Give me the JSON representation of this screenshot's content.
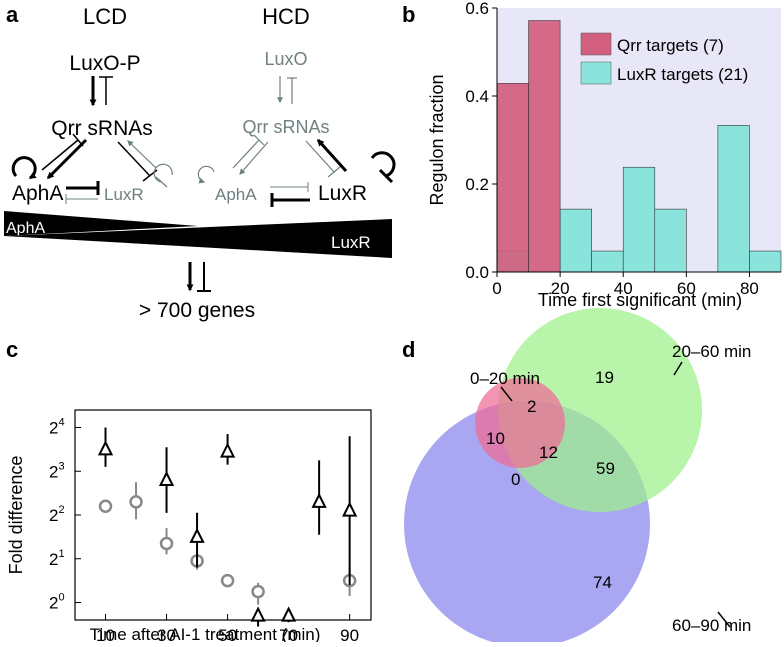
{
  "panels": {
    "a": {
      "letter": "a",
      "lcd": {
        "title": "LCD",
        "luxo_p": "LuxO-P",
        "qrr": "Qrr sRNAs",
        "apha": "AphA",
        "luxr": "LuxR"
      },
      "hcd": {
        "title": "HCD",
        "luxo": "LuxO",
        "qrr": "Qrr sRNAs",
        "apha": "AphA",
        "luxr": "LuxR"
      },
      "wedges": {
        "apha_label": "AphA",
        "luxr_label": "LuxR"
      },
      "target": "> 700 genes"
    },
    "b": {
      "letter": "b"
    },
    "c": {
      "letter": "c"
    },
    "d": {
      "letter": "d",
      "sets": [
        {
          "name": "0–20 min",
          "color": "#ee5e8c"
        },
        {
          "name": "20–60 min",
          "color": "#8fef78"
        },
        {
          "name": "60–90 min",
          "color": "#9a98ef"
        }
      ],
      "regions": {
        "only_0_20": "10",
        "only_20_60": "19",
        "only_60_90": "74",
        "a_and_b": "2",
        "all_three": "12",
        "b_and_c": "59",
        "a_and_c": "0"
      }
    }
  },
  "chart_data": [
    {
      "panel": "b",
      "type": "bar",
      "title": "",
      "xlabel": "Time first significant (min)",
      "ylabel": "Regulon fraction",
      "xlim": [
        0,
        90
      ],
      "ylim": [
        0,
        0.6
      ],
      "xticks": [
        "0",
        "20",
        "40",
        "60",
        "80"
      ],
      "yticks": [
        "0.0",
        "0.2",
        "0.4",
        "0.6"
      ],
      "bin_width": 10,
      "series": [
        {
          "name": "Qrr targets (7)",
          "color": "#d2607e",
          "bins": [
            0,
            10
          ],
          "values": [
            0.4286,
            0.5714
          ]
        },
        {
          "name": "LuxR targets (21)",
          "color": "#8be4dc",
          "bins": [
            0,
            20,
            30,
            40,
            50,
            70,
            80
          ],
          "values": [
            0.0476,
            0.1429,
            0.0476,
            0.2381,
            0.1429,
            0.3333,
            0.0476
          ]
        }
      ],
      "legend": "top-right"
    },
    {
      "panel": "c",
      "type": "scatter",
      "xlabel": "Time after AI-1 treatment (min)",
      "ylabel": "Fold difference",
      "xlim": [
        0,
        97
      ],
      "ylim_log2": [
        -0.4,
        4.4
      ],
      "xticks": [
        "10",
        "30",
        "50",
        "70",
        "90"
      ],
      "ytick_base": "2",
      "yticks": [
        "0",
        "1",
        "2",
        "3",
        "4"
      ],
      "series": [
        {
          "name": "triangle series",
          "marker": "triangle",
          "color": "#000000",
          "x": [
            10,
            30,
            40,
            50,
            60,
            70,
            80,
            90
          ],
          "y": [
            3.5,
            2.8,
            1.5,
            3.45,
            -0.3,
            -0.3,
            2.3,
            2.1
          ],
          "err_low": [
            3.1,
            2.05,
            0.8,
            3.15,
            -0.55,
            -0.45,
            1.55,
            0.4
          ],
          "err_high": [
            4.0,
            3.55,
            2.05,
            3.85,
            -0.15,
            -0.2,
            3.25,
            3.8
          ]
        },
        {
          "name": "circle series",
          "marker": "circle",
          "color": "#888888",
          "x": [
            10,
            20,
            30,
            40,
            50,
            60,
            90
          ],
          "y": [
            2.2,
            2.3,
            1.35,
            0.95,
            0.5,
            0.25,
            0.5
          ],
          "err_low": [
            2.2,
            1.9,
            1.1,
            0.75,
            0.35,
            -0.05,
            0.15
          ],
          "err_high": [
            2.2,
            2.75,
            1.7,
            1.1,
            0.65,
            0.45,
            0.8
          ]
        }
      ]
    }
  ]
}
